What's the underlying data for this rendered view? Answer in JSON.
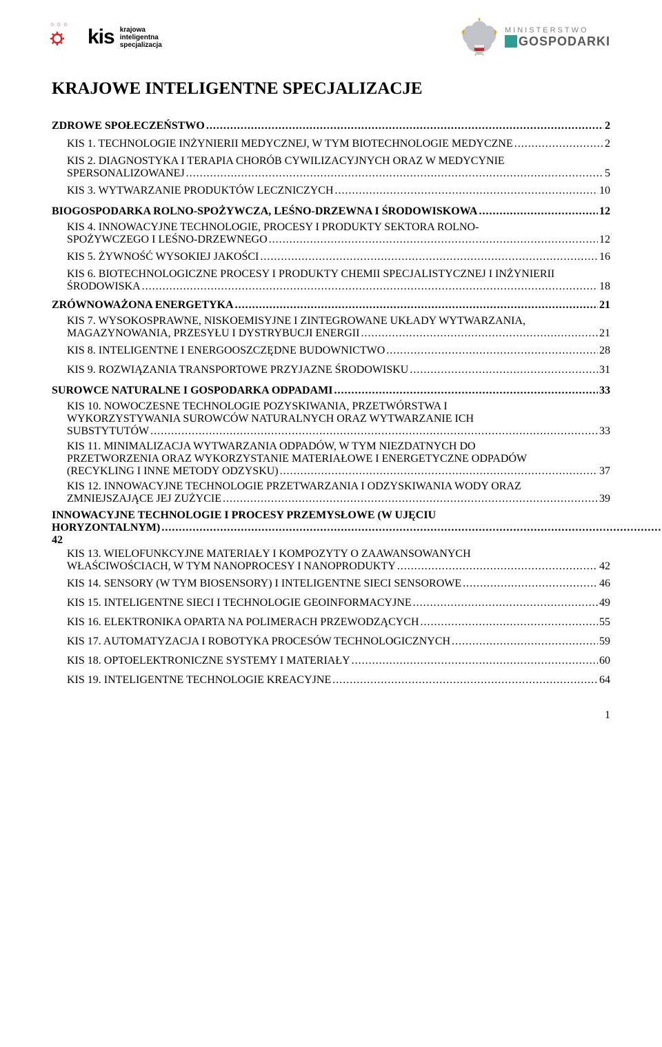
{
  "header": {
    "logo_left": {
      "mark_dots": "○ ○ ○",
      "text": "kis",
      "sub_l1": "krajowa",
      "sub_l2": "inteligentna",
      "sub_l3": "specjalizacja",
      "gear_color": "#d8232a",
      "dot_color": "#d8232a"
    },
    "logo_right": {
      "eagle_fill": "#c0c4c8",
      "eagle_accent": "#d4af37",
      "teal": "#2e9e92",
      "min_text": "MINISTERSTWO",
      "gosp_text": "GOSPODARKI",
      "min_color": "#808285",
      "gosp_color": "#58595b"
    }
  },
  "title": "KRAJOWE INTELIGENTNE SPECJALIZACJE",
  "toc": [
    {
      "level": 1,
      "label": "ZDROWE SPOŁECZEŃSTWO",
      "page": "2"
    },
    {
      "level": 2,
      "label": "KIS 1. TECHNOLOGIE INŻYNIERII MEDYCZNEJ, W TYM BIOTECHNOLOGIE MEDYCZNE",
      "page": "2"
    },
    {
      "level": 2,
      "multi": true,
      "pre": "KIS 2. DIAGNOSTYKA I TERAPIA CHORÓB CYWILIZACYJNYCH ORAZ  W MEDYCYNIE",
      "last": "SPERSONALIZOWANEJ",
      "page": "5"
    },
    {
      "level": 2,
      "label": "KIS 3. WYTWARZANIE PRODUKTÓW LECZNICZYCH",
      "page": "10"
    },
    {
      "level": 1,
      "label": "BIOGOSPODARKA ROLNO-SPOŻYWCZA, LEŚNO-DRZEWNA  I ŚRODOWISKOWA",
      "page": "12"
    },
    {
      "level": 2,
      "multi": true,
      "pre": "KIS 4. INNOWACYJNE TECHNOLOGIE, PROCESY I PRODUKTY SEKTORA ROLNO-",
      "last": "SPOŻYWCZEGO I LEŚNO-DRZEWNEGO",
      "page": "12"
    },
    {
      "level": 2,
      "label": "KIS 5. ŻYWNOŚĆ WYSOKIEJ JAKOŚCI",
      "page": "16"
    },
    {
      "level": 2,
      "multi": true,
      "pre": "KIS 6. BIOTECHNOLOGICZNE PROCESY I PRODUKTY CHEMII SPECJALISTYCZNEJ I INŻYNIERII",
      "last": "ŚRODOWISKA",
      "page": "18"
    },
    {
      "level": 1,
      "label": "ZRÓWNOWAŻONA ENERGETYKA",
      "page": "21"
    },
    {
      "level": 2,
      "multi": true,
      "pre": "KIS 7. WYSOKOSPRAWNE, NISKOEMISYJNE I ZINTEGROWANE UKŁADY WYTWARZANIA,",
      "last": "MAGAZYNOWANIA, PRZESYŁU I DYSTRYBUCJI ENERGII",
      "page": "21"
    },
    {
      "level": 2,
      "label": "KIS 8. INTELIGENTNE I ENERGOOSZCZĘDNE BUDOWNICTWO",
      "page": "28"
    },
    {
      "level": 2,
      "label": "KIS 9. ROZWIĄZANIA TRANSPORTOWE PRZYJAZNE ŚRODOWISKU",
      "page": "31"
    },
    {
      "level": 1,
      "label": "SUROWCE NATURALNE I GOSPODARKA ODPADAMI",
      "page": "33"
    },
    {
      "level": 2,
      "multi": true,
      "pre": "KIS 10. NOWOCZESNE TECHNOLOGIE POZYSKIWANIA, PRZETWÓRSTWA  I\nWYKORZYSTYWANIA SUROWCÓW NATURALNYCH ORAZ WYTWARZANIE ICH",
      "last": "SUBSTYTUTÓW",
      "page": "33"
    },
    {
      "level": 2,
      "multi": true,
      "pre": "KIS 11. MINIMALIZACJA WYTWARZANIA ODPADÓW, W TYM NIEZDATNYCH DO\nPRZETWORZENIA ORAZ WYKORZYSTANIE MATERIAŁOWE  I ENERGETYCZNE ODPADÓW",
      "last": "(RECYKLING I INNE METODY ODZYSKU)",
      "page": "37"
    },
    {
      "level": 2,
      "multi": true,
      "pre": "KIS 12. INNOWACYJNE TECHNOLOGIE PRZETWARZANIA I ODZYSKIWANIA WODY ORAZ",
      "last": "ZMNIEJSZAJĄCE JEJ ZUŻYCIE",
      "page": "39"
    },
    {
      "level": 1,
      "multi": true,
      "pre": "INNOWACYJNE TECHNOLOGIE I PROCESY PRZEMYSŁOWE  (W UJĘCIU",
      "last": "HORYZONTALNYM)",
      "page": "42"
    },
    {
      "level": 2,
      "multi": true,
      "pre": "KIS 13. WIELOFUNKCYJNE MATERIAŁY I KOMPOZYTY  O ZAAWANSOWANYCH",
      "last": "WŁAŚCIWOŚCIACH, W TYM NANOPROCESY  I NANOPRODUKTY",
      "page": "42"
    },
    {
      "level": 2,
      "label": "KIS 14. SENSORY (W TYM BIOSENSORY) I INTELIGENTNE SIECI SENSOROWE",
      "page": "46"
    },
    {
      "level": 2,
      "label": "KIS 15. INTELIGENTNE SIECI I TECHNOLOGIE GEOINFORMACYJNE",
      "page": "49"
    },
    {
      "level": 2,
      "label": "KIS 16. ELEKTRONIKA OPARTA NA POLIMERACH PRZEWODZĄCYCH",
      "page": "55"
    },
    {
      "level": 2,
      "label": "KIS 17. AUTOMATYZACJA I ROBOTYKA PROCESÓW TECHNOLOGICZNYCH",
      "page": "59"
    },
    {
      "level": 2,
      "label": "KIS 18. OPTOELEKTRONICZNE SYSTEMY I MATERIAŁY",
      "page": "60"
    },
    {
      "level": 2,
      "label": "KIS 19. INTELIGENTNE TECHNOLOGIE KREACYJNE",
      "page": "64"
    }
  ],
  "page_number": "1",
  "colors": {
    "background": "#ffffff",
    "text": "#000000"
  }
}
